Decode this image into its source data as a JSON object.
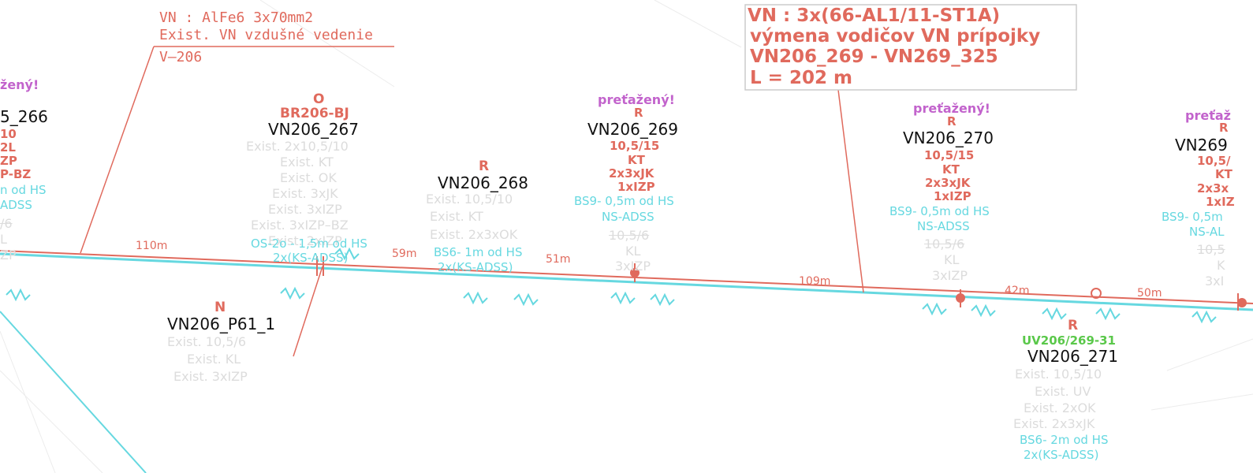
{
  "colors": {
    "line_red": "#e06a5d",
    "line_cyan": "#66d8e0",
    "label_black": "#111111",
    "overload_magenta": "#c263cc",
    "existing_grey": "#dcdcdc",
    "green": "#5ac84a"
  },
  "note": {
    "l1": "VN :  AlFe6  3x70mm2",
    "l2": "Exist.  VN  vzdušné  vedenie",
    "l3": "V–206"
  },
  "box": {
    "l1": "VN :   3x(66-AL1/11-ST1A)",
    "l2": "výmena vodičov VN prípojky",
    "l3": "VN206_269 - VN269_325",
    "l4": "L = 202 m"
  },
  "left": {
    "overload": "žený!",
    "id": "5_266",
    "a": "10",
    "b": "2L",
    "c": "ZP",
    "d": "P-BZ",
    "e": "n od HS",
    "f": "ADSS",
    "g": "/6",
    "h": "L",
    "i": "ZP"
  },
  "p267": {
    "letter": "O",
    "code": "BR206-BJ",
    "id": "VN206_267",
    "e1": "Exist.  2x10,5/10",
    "e2": "Exist.  KT",
    "e3": "Exist.  OK",
    "e4": "Exist.  3xJK",
    "e5": "Exist.  3xIZP",
    "e6": "Exist.  3xIZP–BZ",
    "e7": "Exist.  2xIZP",
    "c1": "OS-2o - 1,5m od HS",
    "c2": "2x(KS-ADSS)"
  },
  "p268": {
    "letter": "R",
    "id": "VN206_268",
    "e1": "Exist.  10,5/10",
    "e2": "Exist.  KT",
    "e3": "Exist.  2x3xOK",
    "c1": "BS6- 1m od HS",
    "c2": "2x(KS-ADSS)"
  },
  "p269": {
    "overload": "preťažený!",
    "letter": "R",
    "id": "VN206_269",
    "r1": "10,5/15",
    "r2": "KT",
    "r3": "2x3xJK",
    "r4": "1xIZP",
    "c1": "BS9- 0,5m od HS",
    "c2": "NS-ADSS",
    "g1": "10,5/6",
    "g2": "KL",
    "g3": "3xIZP"
  },
  "p270": {
    "overload": "preťažený!",
    "letter": "R",
    "id": "VN206_270",
    "r1": "10,5/15",
    "r2": "KT",
    "r3": "2x3xJK",
    "r4": "1xIZP",
    "c1": "BS9- 0,5m od HS",
    "c2": "NS-ADSS",
    "g1": "10,5/6",
    "g2": "KL",
    "g3": "3xIZP"
  },
  "p271": {
    "letter": "R",
    "code": "UV206/269-31",
    "id": "VN206_271",
    "e1": "Exist.  10,5/10",
    "e2": "Exist.  UV",
    "e3": "Exist.  2xOK",
    "e4": "Exist.  2x3xJK",
    "c1": "BS6- 2m od HS",
    "c2": "2x(KS-ADSS)"
  },
  "p61": {
    "letter": "N",
    "id": "VN206_P61_1",
    "e1": "Exist.  10,5/6",
    "e2": "Exist.  KL",
    "e3": "Exist.  3xIZP"
  },
  "right": {
    "overload": "preťaž",
    "letter": "R",
    "id": "VN269",
    "r1": "10,5/",
    "r2": "KT",
    "r3": "2x3x",
    "r4": "1xIZ",
    "c1": "BS9- 0,5m",
    "c2": "NS-AL",
    "g1": "10,5",
    "g2": "K",
    "g3": "3xI"
  },
  "distances": {
    "d1": "110m",
    "d2": "59m",
    "d3": "51m",
    "d4": "109m",
    "d5": "42m",
    "d6": "50m"
  }
}
